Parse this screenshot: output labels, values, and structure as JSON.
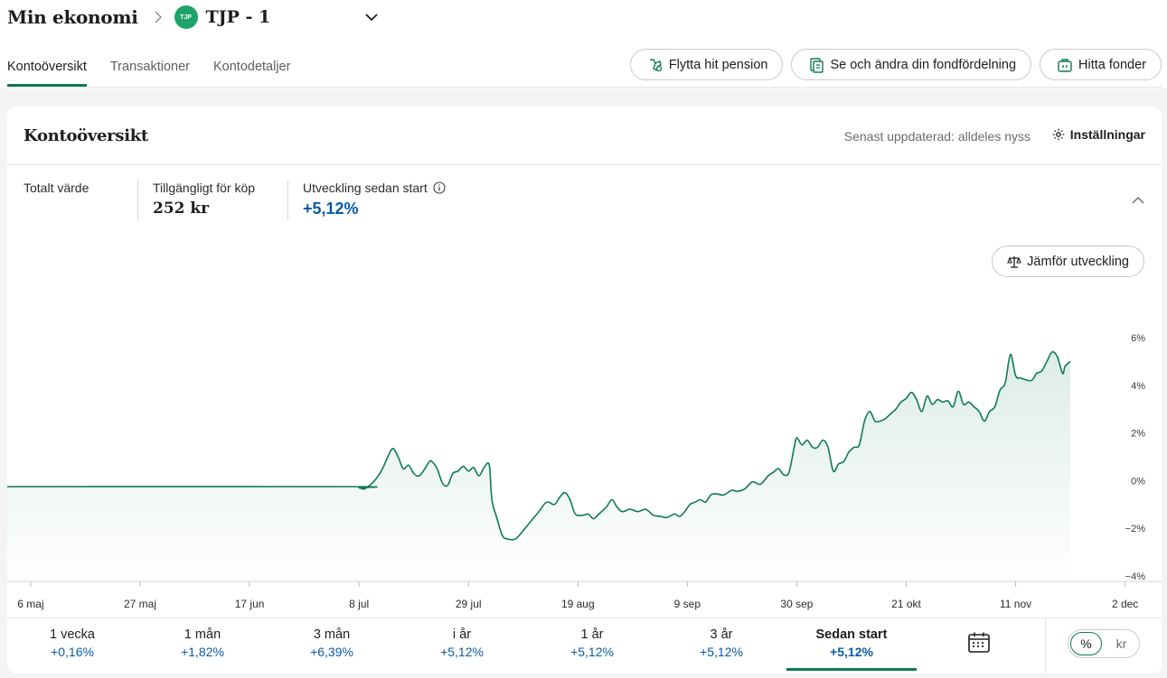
{
  "header": {
    "title": "Min ekonomi",
    "account_logo": "TJP",
    "account_name": "TJP - 1"
  },
  "tabs": [
    {
      "label": "Kontoöversikt",
      "active": true
    },
    {
      "label": "Transaktioner",
      "active": false
    },
    {
      "label": "Kontodetaljer",
      "active": false
    }
  ],
  "actions": {
    "move_pension": "Flytta hit pension",
    "fund_allocation": "Se och ändra din fondfördelning",
    "find_funds": "Hitta fonder"
  },
  "overview": {
    "title": "Kontoöversikt",
    "updated": "Senast uppdaterad: alldeles nyss",
    "settings": "Inställningar",
    "total_label": "Totalt värde",
    "available_label": "Tillgängligt för köp",
    "available_value": "252 kr",
    "development_label": "Utveckling sedan start",
    "development_value": "+5,12%",
    "compare": "Jämför utveckling"
  },
  "chart_data": {
    "type": "area",
    "line_color": "#0e7a54",
    "y_ticks": [
      "6%",
      "4%",
      "2%",
      "0%",
      "−2%",
      "−4%"
    ],
    "ylim": [
      -4,
      6
    ],
    "x_ticks": [
      "6 maj",
      "27 maj",
      "17 jun",
      "8 jul",
      "29 jul",
      "19 aug",
      "9 sep",
      "30 sep",
      "21 okt",
      "11 nov",
      "2 dec"
    ],
    "x_tick_days": [
      0,
      21,
      42,
      63,
      84,
      105,
      126,
      147,
      168,
      189,
      210
    ],
    "xlim": [
      -4.5,
      217
    ],
    "points": [
      [
        -4.5,
        -0.25
      ],
      [
        61,
        -0.25
      ],
      [
        63,
        -0.3
      ],
      [
        64,
        -0.35
      ],
      [
        65,
        -0.2
      ],
      [
        66,
        0
      ],
      [
        67.5,
        0.5
      ],
      [
        68.5,
        1.0
      ],
      [
        69.5,
        1.35
      ],
      [
        70.5,
        1.0
      ],
      [
        71.5,
        0.5
      ],
      [
        72.5,
        0.65
      ],
      [
        73.5,
        0.3
      ],
      [
        74.5,
        0.2
      ],
      [
        75.5,
        0.45
      ],
      [
        76.5,
        0.8
      ],
      [
        77,
        0.8
      ],
      [
        78,
        0.5
      ],
      [
        79,
        -0.1
      ],
      [
        80,
        -0.2
      ],
      [
        81,
        0.3
      ],
      [
        82,
        0.4
      ],
      [
        83,
        0.6
      ],
      [
        84,
        0.4
      ],
      [
        85,
        0.55
      ],
      [
        86,
        0.2
      ],
      [
        87,
        0.55
      ],
      [
        88,
        0.65
      ],
      [
        88.5,
        -0.8
      ],
      [
        89.5,
        -1.6
      ],
      [
        90.5,
        -2.3
      ],
      [
        91.5,
        -2.45
      ],
      [
        93,
        -2.45
      ],
      [
        94.5,
        -2.1
      ],
      [
        96,
        -1.7
      ],
      [
        97.5,
        -1.3
      ],
      [
        99,
        -0.9
      ],
      [
        100.5,
        -1.0
      ],
      [
        101.5,
        -0.7
      ],
      [
        102.5,
        -0.5
      ],
      [
        103.5,
        -0.8
      ],
      [
        104.5,
        -1.4
      ],
      [
        106,
        -1.45
      ],
      [
        107,
        -1.4
      ],
      [
        108,
        -1.6
      ],
      [
        109,
        -1.4
      ],
      [
        110.5,
        -1.1
      ],
      [
        111.5,
        -0.8
      ],
      [
        112.5,
        -1.1
      ],
      [
        113.5,
        -1.3
      ],
      [
        115,
        -1.2
      ],
      [
        116.5,
        -1.3
      ],
      [
        118,
        -1.2
      ],
      [
        119.5,
        -1.45
      ],
      [
        121,
        -1.5
      ],
      [
        122,
        -1.55
      ],
      [
        123.5,
        -1.4
      ],
      [
        124.5,
        -1.5
      ],
      [
        125.5,
        -1.3
      ],
      [
        126.5,
        -1.0
      ],
      [
        127.5,
        -0.9
      ],
      [
        128.5,
        -0.8
      ],
      [
        129.5,
        -0.9
      ],
      [
        130.5,
        -0.6
      ],
      [
        131.5,
        -0.55
      ],
      [
        133,
        -0.6
      ],
      [
        134.5,
        -0.4
      ],
      [
        135.5,
        -0.45
      ],
      [
        137,
        -0.35
      ],
      [
        138.5,
        -0.05
      ],
      [
        140,
        -0.15
      ],
      [
        141.5,
        0.2
      ],
      [
        142.5,
        0.35
      ],
      [
        143.5,
        0.5
      ],
      [
        144.5,
        0.25
      ],
      [
        145.5,
        0.35
      ],
      [
        146.5,
        1.4
      ],
      [
        147,
        1.8
      ],
      [
        148,
        1.5
      ],
      [
        149,
        1.7
      ],
      [
        150,
        1.4
      ],
      [
        151,
        1.4
      ],
      [
        152,
        1.7
      ],
      [
        153,
        1.4
      ],
      [
        154,
        0.4
      ],
      [
        155,
        0.7
      ],
      [
        156,
        0.8
      ],
      [
        157,
        1.2
      ],
      [
        158,
        1.4
      ],
      [
        159,
        1.5
      ],
      [
        160,
        2.5
      ],
      [
        161,
        2.9
      ],
      [
        162,
        2.5
      ],
      [
        163,
        2.5
      ],
      [
        164,
        2.6
      ],
      [
        165,
        2.8
      ],
      [
        166,
        3.0
      ],
      [
        167,
        3.3
      ],
      [
        168,
        3.45
      ],
      [
        169,
        3.7
      ],
      [
        170,
        3.4
      ],
      [
        171,
        2.9
      ],
      [
        172,
        3.55
      ],
      [
        173,
        3.2
      ],
      [
        174,
        3.4
      ],
      [
        175,
        3.3
      ],
      [
        176,
        3.35
      ],
      [
        177,
        3.1
      ],
      [
        178,
        3.75
      ],
      [
        179,
        3.2
      ],
      [
        180,
        3.3
      ],
      [
        181,
        3.1
      ],
      [
        182,
        2.9
      ],
      [
        183,
        2.5
      ],
      [
        184,
        2.9
      ],
      [
        185,
        3.1
      ],
      [
        186,
        3.8
      ],
      [
        187,
        4.1
      ],
      [
        188,
        5.3
      ],
      [
        189,
        4.4
      ],
      [
        190,
        4.3
      ],
      [
        192,
        4.2
      ],
      [
        193,
        4.5
      ],
      [
        194,
        4.6
      ],
      [
        195,
        5.0
      ],
      [
        196,
        5.4
      ],
      [
        197,
        5.2
      ],
      [
        198,
        4.5
      ],
      [
        198.5,
        4.8
      ],
      [
        199.5,
        5.0
      ]
    ]
  },
  "periods": [
    {
      "label": "1 vecka",
      "value": "+0,16%"
    },
    {
      "label": "1 mån",
      "value": "+1,82%"
    },
    {
      "label": "3 mån",
      "value": "+6,39%"
    },
    {
      "label": "i år",
      "value": "+5,12%"
    },
    {
      "label": "1 år",
      "value": "+5,12%"
    },
    {
      "label": "3 år",
      "value": "+5,12%"
    },
    {
      "label": "Sedan start",
      "value": "+5,12%",
      "active": true
    }
  ],
  "unit_toggle": {
    "percent": "%",
    "kr": "kr"
  }
}
